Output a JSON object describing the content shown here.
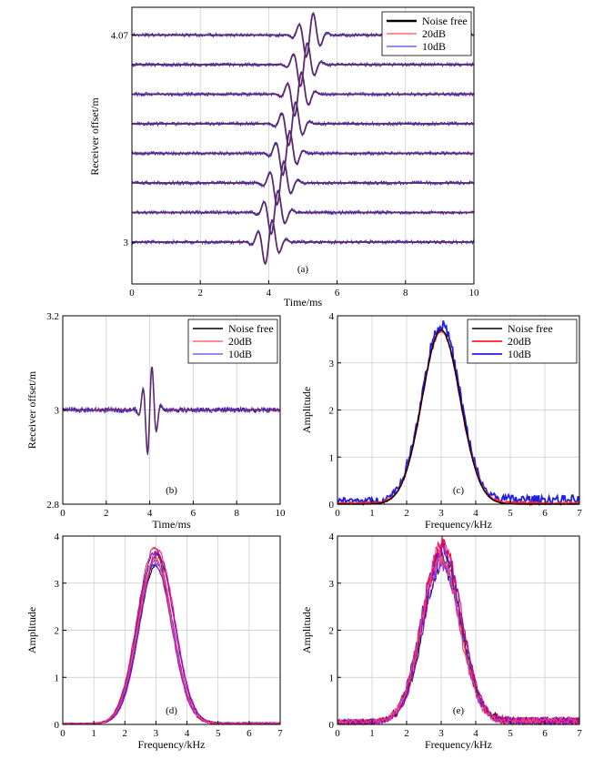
{
  "colors": {
    "noise_free": "#000000",
    "db20": "#ff2020",
    "db10": "#1e1ee6",
    "overlap": "#5a2a6e",
    "grid": "#c8c8c8"
  },
  "chart_data": [
    {
      "id": "a",
      "type": "line",
      "panel_label": "(a)",
      "xlabel": "Time/ms",
      "ylabel": "Receiver  offset/m",
      "xlim": [
        0,
        10
      ],
      "xticks": [
        "0",
        "2",
        "4",
        "6",
        "8",
        "10"
      ],
      "yticks": [
        {
          "label": "4.07",
          "trace": 7
        },
        {
          "label": "3",
          "trace": 0
        }
      ],
      "traces": 8,
      "wavelet_center_first_ms": 4.0,
      "wavelet_center_last_ms": 5.2,
      "legend": [
        "Noise free",
        "20dB",
        "10dB"
      ],
      "legend_position": "top-right",
      "grid": true
    },
    {
      "id": "b",
      "type": "line",
      "panel_label": "(b)",
      "xlabel": "Time/ms",
      "ylabel": "Receiver offset/m",
      "xlim": [
        0,
        10
      ],
      "ylim": [
        2.8,
        3.2
      ],
      "xticks": [
        "0",
        "2",
        "4",
        "6",
        "8",
        "10"
      ],
      "yticks": [
        "2.8",
        "3",
        "3.2"
      ],
      "baseline": 3.0,
      "wavelet_center_ms": 4.0,
      "peak_amplitude": 0.1,
      "legend": [
        "Noise free",
        "20dB",
        "10dB"
      ],
      "legend_position": "top-right",
      "grid": true
    },
    {
      "id": "c",
      "type": "line",
      "panel_label": "(c)",
      "xlabel": "Frequency/kHz",
      "ylabel": "Amplitude",
      "xlim": [
        0,
        7
      ],
      "ylim": [
        0,
        4
      ],
      "xticks": [
        "0",
        "1",
        "2",
        "3",
        "4",
        "5",
        "6",
        "7"
      ],
      "yticks": [
        "0",
        "1",
        "2",
        "3",
        "4"
      ],
      "series": [
        {
          "name": "Noise free",
          "peak": 3.7,
          "center_khz": 3.0
        },
        {
          "name": "20dB",
          "peak": 3.65,
          "center_khz": 3.0
        },
        {
          "name": "10dB",
          "peak": 3.75,
          "center_khz": 3.0
        }
      ],
      "legend_position": "top-right",
      "grid": true
    },
    {
      "id": "d",
      "type": "line",
      "panel_label": "(d)",
      "xlabel": "Frequency/kHz",
      "ylabel": "Amplitude",
      "xlim": [
        0,
        7
      ],
      "ylim": [
        0,
        4
      ],
      "xticks": [
        "0",
        "1",
        "2",
        "3",
        "4",
        "5",
        "6",
        "7"
      ],
      "yticks": [
        "0",
        "1",
        "2",
        "3",
        "4"
      ],
      "center_khz": 3.0,
      "peak_range": [
        3.35,
        3.72
      ],
      "grid": true
    },
    {
      "id": "e",
      "type": "line",
      "panel_label": "(e)",
      "xlabel": "Frequency/kHz",
      "ylabel": "Amplitude",
      "xlim": [
        0,
        7
      ],
      "ylim": [
        0,
        4
      ],
      "xticks": [
        "0",
        "1",
        "2",
        "3",
        "4",
        "5",
        "6",
        "7"
      ],
      "yticks": [
        "0",
        "1",
        "2",
        "3",
        "4"
      ],
      "center_khz": 3.0,
      "peak_range": [
        3.3,
        3.78
      ],
      "grid": true
    }
  ]
}
